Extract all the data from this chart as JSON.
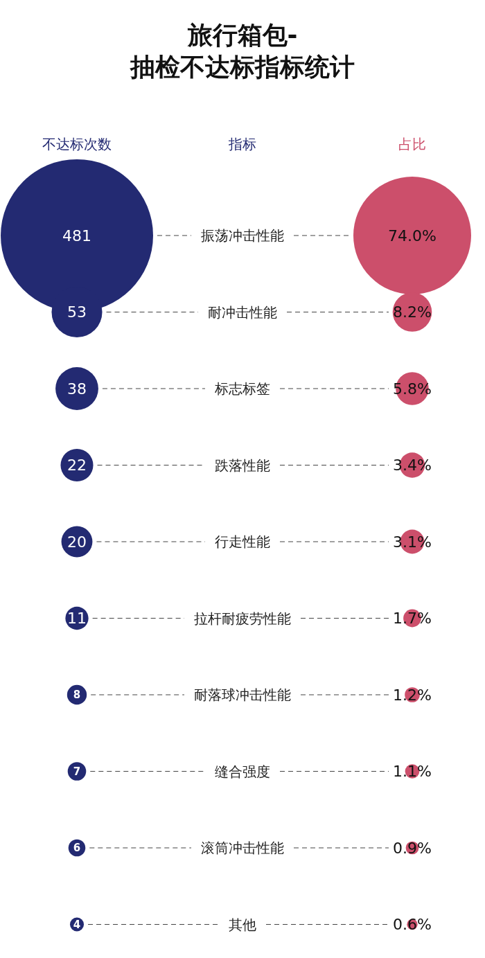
{
  "chart_data": {
    "type": "other",
    "title": "旅行箱包-\n抽检不达标指标统计",
    "ylabel": "指标",
    "categories": [
      "振荡冲击性能",
      "耐冲击性能",
      "标志标签",
      "跌落性能",
      "行走性能",
      "拉杆耐疲劳性能",
      "耐落球冲击性能",
      "缝合强度",
      "滚筒冲击性能",
      "其他"
    ],
    "series": [
      {
        "name": "不达标次数",
        "color": "#232a72",
        "values": [
          481,
          53,
          38,
          22,
          20,
          11,
          8,
          7,
          6,
          4
        ],
        "value_labels": [
          "481",
          "53",
          "38",
          "22",
          "20",
          "11",
          "8",
          "7",
          "6",
          "4"
        ]
      },
      {
        "name": "占比",
        "color": "#cc4f6b",
        "values": [
          74.0,
          8.2,
          5.8,
          3.4,
          3.1,
          1.7,
          1.2,
          1.1,
          0.9,
          0.6
        ],
        "value_labels": [
          "74.0%",
          "8.2%",
          "5.8%",
          "3.4%",
          "3.1%",
          "1.7%",
          "1.2%",
          "1.1%",
          "0.9%",
          "0.6%"
        ]
      }
    ]
  }
}
